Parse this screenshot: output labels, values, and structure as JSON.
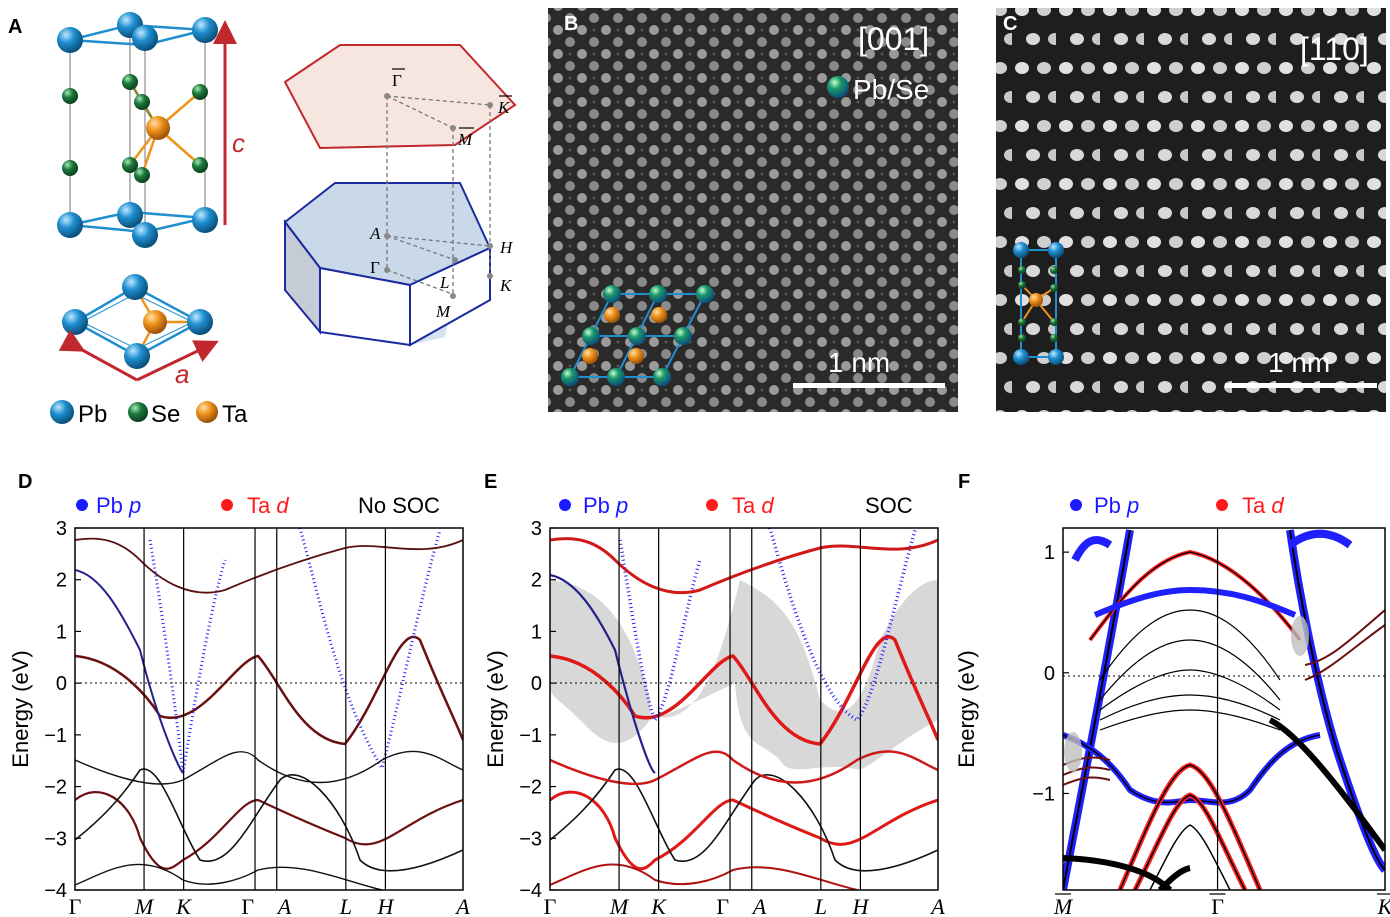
{
  "panels": {
    "A": {
      "label": "A",
      "c_label": "c",
      "a_label": "a",
      "legend": [
        "Pb",
        "Se",
        "Ta"
      ],
      "bz_points": {
        "gamma_bar": "Γ",
        "k_bar": "K",
        "m_bar": "M",
        "A": "A",
        "H": "H",
        "Gamma": "Γ",
        "L": "L",
        "K": "K",
        "M": "M"
      }
    },
    "B": {
      "label": "B",
      "zone": "[001]",
      "legend": "Pb/Se",
      "scale": "1 nm"
    },
    "C": {
      "label": "C",
      "zone": "[110]",
      "scale": "1 nm"
    },
    "D": {
      "label": "D",
      "legend": [
        "Pb p",
        "Ta d"
      ],
      "mode": "No SOC"
    },
    "E": {
      "label": "E",
      "legend": [
        "Pb p",
        "Ta d"
      ],
      "mode": "SOC"
    },
    "F": {
      "label": "F",
      "legend": [
        "Pb p",
        "Ta d"
      ]
    }
  },
  "legend_parts": {
    "pb": "Pb",
    "p": "p",
    "ta": "Ta",
    "d": "d"
  },
  "colors": {
    "pb": "#1f8fd0",
    "se": "#1c7a3a",
    "ta": "#f0921c",
    "pb_p": "#1a1aff",
    "ta_d": "#ff1a1a",
    "arrow": "#c0282e",
    "bz_top": "#c0282e",
    "bz_bottom": "#1c2aa0"
  },
  "chart_data": [
    {
      "type": "line",
      "panel": "D",
      "ylabel": "Energy (eV)",
      "ylim": [
        -4,
        3
      ],
      "yticks": [
        -4,
        -3,
        -2,
        -1,
        0,
        1,
        2,
        3
      ],
      "kpoints": [
        "Γ",
        "M",
        "K",
        "Γ",
        "A",
        "L",
        "H",
        "A"
      ],
      "kpos": [
        0,
        0.178,
        0.28,
        0.464,
        0.52,
        0.698,
        0.8,
        1.0
      ],
      "legend": [
        "Pb p",
        "Ta d"
      ],
      "annotation": "No SOC"
    },
    {
      "type": "line",
      "panel": "E",
      "ylabel": "Energy (eV)",
      "ylim": [
        -4,
        3
      ],
      "yticks": [
        -4,
        -3,
        -2,
        -1,
        0,
        1,
        2,
        3
      ],
      "kpoints": [
        "Γ",
        "M",
        "K",
        "Γ",
        "A",
        "L",
        "H",
        "A"
      ],
      "kpos": [
        0,
        0.178,
        0.28,
        0.464,
        0.52,
        0.698,
        0.8,
        1.0
      ],
      "legend": [
        "Pb p",
        "Ta d"
      ],
      "annotation": "SOC"
    },
    {
      "type": "line",
      "panel": "F",
      "ylabel": "Energy (eV)",
      "ylim": [
        -1.8,
        1.2
      ],
      "yticks": [
        -1,
        0,
        1
      ],
      "kpoints": [
        "M",
        "Γ",
        "K"
      ],
      "kpos": [
        0,
        0.48,
        1.0
      ],
      "legend": [
        "Pb p",
        "Ta d"
      ]
    }
  ]
}
